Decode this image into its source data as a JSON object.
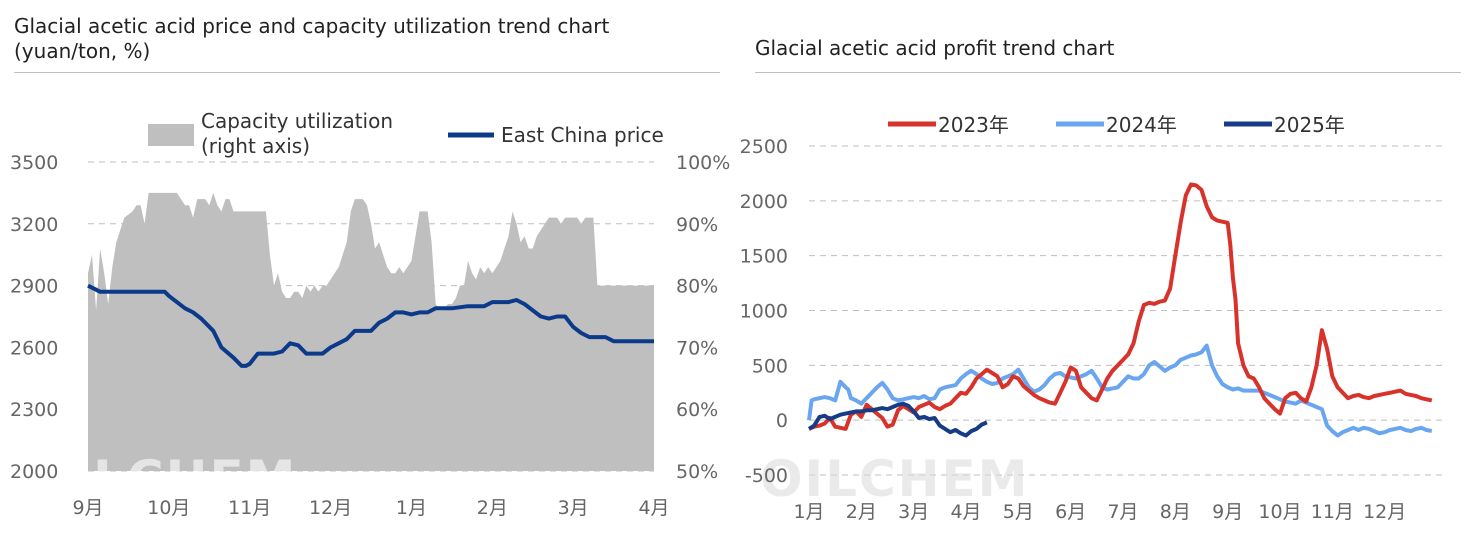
{
  "colors": {
    "capacity_fill": "#bfbfbf",
    "east_china": "#0c3a8a",
    "y2023": "#d7332b",
    "y2024": "#6aa6f0",
    "y2025": "#173c86",
    "grid": "#bfbfbf",
    "axis_text": "#666666"
  },
  "watermark": "OILCHEM",
  "chart_data": [
    {
      "type": "line",
      "title_line1": "Glacial acetic acid price and capacity utilization trend chart",
      "title_line2": "(yuan/ton, %)",
      "categories": [
        "9月",
        "10月",
        "11月",
        "12月",
        "1月",
        "2月",
        "3月",
        "4月"
      ],
      "ylim_left": [
        2000,
        3500
      ],
      "yticks_left": [
        "3500",
        "3200",
        "2900",
        "2600",
        "2300",
        "2000"
      ],
      "ylim_right": [
        50,
        100
      ],
      "yticks_right": [
        "100%",
        "90%",
        "80%",
        "70%",
        "60%",
        "50%"
      ],
      "legend": {
        "capacity": "Capacity utilization",
        "capacity_sub": "(right axis)",
        "price": "East China price"
      },
      "series": [
        {
          "name": "Capacity utilization",
          "kind": "area",
          "axis": "right",
          "x": [
            0,
            0.05,
            0.1,
            0.15,
            0.2,
            0.25,
            0.3,
            0.35,
            0.4,
            0.45,
            0.5,
            0.55,
            0.6,
            0.65,
            0.7,
            0.75,
            0.8,
            0.85,
            0.9,
            0.95,
            1.0,
            1.05,
            1.1,
            1.15,
            1.2,
            1.25,
            1.3,
            1.35,
            1.4,
            1.45,
            1.5,
            1.55,
            1.6,
            1.65,
            1.7,
            1.75,
            1.8,
            1.85,
            1.9,
            1.95,
            2.0,
            2.05,
            2.1,
            2.15,
            2.2,
            2.25,
            2.3,
            2.35,
            2.4,
            2.45,
            2.5,
            2.55,
            2.6,
            2.65,
            2.7,
            2.75,
            2.8,
            2.85,
            2.9,
            2.95,
            3.0,
            3.05,
            3.1,
            3.15,
            3.2,
            3.25,
            3.3,
            3.35,
            3.4,
            3.45,
            3.5,
            3.55,
            3.6,
            3.65,
            3.7,
            3.75,
            3.8,
            3.85,
            3.9,
            3.95,
            4.0,
            4.05,
            4.1,
            4.15,
            4.2,
            4.25,
            4.3,
            4.35,
            4.4,
            4.45,
            4.5,
            4.55,
            4.6,
            4.65,
            4.7,
            4.75,
            4.8,
            4.85,
            4.9,
            4.95,
            5.0,
            5.05,
            5.1,
            5.15,
            5.2,
            5.25,
            5.3,
            5.35,
            5.4,
            5.45,
            5.5,
            5.55,
            5.6,
            5.65,
            5.7,
            5.75,
            5.8,
            5.85,
            5.9,
            5.95,
            6.0,
            6.05,
            6.1,
            6.15,
            6.2,
            6.25,
            6.3,
            6.35,
            6.4,
            6.45,
            6.5,
            6.55,
            6.6,
            6.65,
            6.7,
            6.75,
            6.8,
            6.85,
            6.9,
            6.95,
            7.0
          ],
          "values": [
            82,
            85,
            76,
            86,
            82,
            77,
            83,
            87,
            89,
            91,
            91.5,
            92,
            93,
            93,
            90,
            95,
            95,
            95,
            95,
            95,
            95,
            95,
            95,
            94,
            93,
            93,
            91,
            94,
            94,
            94,
            93,
            95,
            93,
            92,
            94,
            94,
            92,
            92,
            92,
            92,
            92,
            92,
            92,
            92,
            92,
            85,
            80,
            82,
            79,
            78,
            78,
            79,
            79,
            78,
            80,
            79,
            80,
            79,
            80,
            80,
            81,
            82,
            83,
            85,
            87,
            92,
            94,
            94,
            94,
            93,
            90,
            86,
            87,
            85,
            83,
            82,
            82,
            83,
            82,
            83,
            84,
            88,
            92,
            92,
            92,
            87,
            77,
            76,
            76,
            77,
            77,
            78,
            80,
            80,
            84,
            82,
            81,
            83,
            82,
            83,
            82,
            83,
            84,
            86,
            88,
            92,
            90,
            87,
            88,
            86,
            86,
            88,
            89,
            90,
            91,
            91,
            91,
            90,
            91,
            91,
            91,
            91,
            90,
            91,
            91,
            91,
            80,
            80,
            80,
            80,
            80,
            80,
            80,
            80,
            80,
            80,
            80,
            80,
            80,
            80,
            80
          ]
        },
        {
          "name": "East China price",
          "kind": "line",
          "axis": "left",
          "x": [
            0,
            0.05,
            0.1,
            0.15,
            0.2,
            0.4,
            0.6,
            0.8,
            0.95,
            1.0,
            1.1,
            1.2,
            1.3,
            1.4,
            1.5,
            1.55,
            1.65,
            1.8,
            1.9,
            1.95,
            2.0,
            2.1,
            2.2,
            2.3,
            2.4,
            2.5,
            2.6,
            2.7,
            2.8,
            2.9,
            3.0,
            3.1,
            3.2,
            3.25,
            3.3,
            3.4,
            3.5,
            3.55,
            3.6,
            3.7,
            3.8,
            3.9,
            4.0,
            4.1,
            4.2,
            4.3,
            4.5,
            4.7,
            4.9,
            5.0,
            5.1,
            5.2,
            5.3,
            5.4,
            5.5,
            5.6,
            5.7,
            5.8,
            5.9,
            6.0,
            6.1,
            6.2,
            6.3,
            6.4,
            6.5,
            6.6,
            6.7,
            6.8,
            6.9,
            7.0
          ],
          "values": [
            2900,
            2890,
            2880,
            2870,
            2870,
            2870,
            2870,
            2870,
            2870,
            2850,
            2820,
            2790,
            2770,
            2740,
            2700,
            2680,
            2600,
            2550,
            2510,
            2510,
            2520,
            2570,
            2570,
            2570,
            2580,
            2620,
            2610,
            2570,
            2570,
            2570,
            2600,
            2620,
            2640,
            2660,
            2680,
            2680,
            2680,
            2700,
            2720,
            2740,
            2770,
            2770,
            2760,
            2770,
            2770,
            2790,
            2790,
            2800,
            2800,
            2820,
            2820,
            2820,
            2830,
            2810,
            2780,
            2750,
            2740,
            2750,
            2750,
            2700,
            2670,
            2650,
            2650,
            2650,
            2630,
            2630,
            2630,
            2630,
            2630,
            2630
          ]
        }
      ]
    },
    {
      "type": "line",
      "title": "Glacial acetic acid profit trend chart",
      "categories": [
        "1月",
        "2月",
        "3月",
        "4月",
        "5月",
        "6月",
        "7月",
        "8月",
        "9月",
        "10月",
        "11月",
        "12月"
      ],
      "ylim": [
        -500,
        2500
      ],
      "yticks": [
        "2500",
        "2000",
        "1500",
        "1000",
        "500",
        "0",
        "-500"
      ],
      "legend": [
        "2023年",
        "2024年",
        "2025年"
      ],
      "series": [
        {
          "name": "2023年",
          "x": [
            0,
            0.1,
            0.2,
            0.3,
            0.4,
            0.5,
            0.6,
            0.7,
            0.8,
            0.9,
            1.0,
            1.1,
            1.2,
            1.3,
            1.4,
            1.5,
            1.6,
            1.7,
            1.8,
            1.9,
            2.0,
            2.1,
            2.2,
            2.3,
            2.4,
            2.5,
            2.6,
            2.7,
            2.8,
            2.9,
            3.0,
            3.1,
            3.2,
            3.3,
            3.4,
            3.5,
            3.6,
            3.7,
            3.8,
            3.9,
            4.0,
            4.1,
            4.2,
            4.3,
            4.4,
            4.5,
            4.6,
            4.7,
            4.8,
            4.9,
            5.0,
            5.1,
            5.2,
            5.3,
            5.4,
            5.5,
            5.6,
            5.7,
            5.8,
            5.9,
            6.0,
            6.1,
            6.2,
            6.3,
            6.4,
            6.5,
            6.6,
            6.7,
            6.8,
            6.9,
            7.0,
            7.1,
            7.2,
            7.3,
            7.4,
            7.5,
            7.6,
            7.7,
            7.8,
            7.9,
            8.0,
            8.05,
            8.1,
            8.15,
            8.2,
            8.25,
            8.3,
            8.4,
            8.5,
            8.6,
            8.7,
            8.8,
            8.9,
            9.0,
            9.1,
            9.2,
            9.3,
            9.4,
            9.5,
            9.6,
            9.7,
            9.8,
            9.9,
            10.0,
            10.1,
            10.2,
            10.3,
            10.4,
            10.5,
            10.6,
            10.7,
            10.8,
            10.9,
            11.0,
            11.1,
            11.2,
            11.3,
            11.4,
            11.5,
            11.6,
            11.7,
            11.8,
            11.9
          ],
          "values": [
            -80,
            -60,
            -50,
            -30,
            20,
            -60,
            -70,
            -80,
            50,
            80,
            30,
            140,
            100,
            60,
            20,
            -60,
            -40,
            90,
            130,
            100,
            70,
            120,
            140,
            160,
            120,
            100,
            130,
            150,
            200,
            250,
            240,
            300,
            380,
            420,
            460,
            430,
            400,
            300,
            330,
            400,
            380,
            310,
            270,
            230,
            200,
            180,
            160,
            150,
            250,
            350,
            480,
            450,
            300,
            250,
            200,
            180,
            280,
            380,
            450,
            500,
            550,
            600,
            700,
            900,
            1050,
            1070,
            1060,
            1080,
            1090,
            1200,
            1500,
            1800,
            2050,
            2150,
            2140,
            2100,
            1950,
            1850,
            1820,
            1810,
            1800,
            1600,
            1300,
            1100,
            700,
            600,
            500,
            400,
            380,
            300,
            200,
            150,
            100,
            60,
            200,
            240,
            250,
            200,
            170,
            300,
            500,
            820,
            650,
            400,
            300,
            250,
            200,
            220,
            230,
            210,
            200,
            220,
            230,
            240,
            250,
            260,
            270,
            240,
            230,
            220,
            200,
            190,
            180
          ]
        },
        {
          "name": "2024年",
          "x": [
            0,
            0.05,
            0.1,
            0.2,
            0.3,
            0.4,
            0.5,
            0.6,
            0.7,
            0.75,
            0.8,
            0.9,
            1.0,
            1.1,
            1.2,
            1.3,
            1.4,
            1.5,
            1.6,
            1.7,
            1.8,
            1.9,
            2.0,
            2.1,
            2.2,
            2.3,
            2.4,
            2.5,
            2.6,
            2.7,
            2.8,
            2.9,
            3.0,
            3.1,
            3.2,
            3.3,
            3.4,
            3.5,
            3.6,
            3.7,
            3.8,
            3.9,
            4.0,
            4.1,
            4.2,
            4.3,
            4.4,
            4.5,
            4.6,
            4.7,
            4.8,
            4.9,
            5.0,
            5.1,
            5.2,
            5.3,
            5.4,
            5.5,
            5.6,
            5.7,
            5.8,
            5.9,
            6.0,
            6.1,
            6.2,
            6.3,
            6.4,
            6.5,
            6.6,
            6.7,
            6.8,
            6.9,
            7.0,
            7.1,
            7.2,
            7.3,
            7.4,
            7.5,
            7.6,
            7.7,
            7.8,
            7.9,
            8.0,
            8.1,
            8.2,
            8.3,
            8.4,
            8.5,
            8.6,
            8.7,
            8.8,
            8.9,
            9.0,
            9.1,
            9.2,
            9.3,
            9.4,
            9.5,
            9.6,
            9.7,
            9.8,
            9.9,
            10.0,
            10.1,
            10.2,
            10.3,
            10.4,
            10.5,
            10.6,
            10.7,
            10.8,
            10.9,
            11.0,
            11.1,
            11.2,
            11.3,
            11.4,
            11.5,
            11.6,
            11.7,
            11.8,
            11.9
          ],
          "values": [
            0,
            180,
            190,
            200,
            210,
            200,
            180,
            350,
            300,
            280,
            200,
            180,
            150,
            200,
            250,
            300,
            340,
            280,
            200,
            180,
            190,
            200,
            210,
            200,
            220,
            190,
            200,
            280,
            300,
            310,
            320,
            380,
            420,
            450,
            420,
            380,
            350,
            330,
            340,
            380,
            400,
            420,
            460,
            380,
            300,
            260,
            280,
            320,
            380,
            420,
            430,
            400,
            390,
            380,
            400,
            420,
            450,
            380,
            300,
            280,
            290,
            300,
            350,
            400,
            380,
            380,
            420,
            500,
            530,
            490,
            450,
            480,
            500,
            550,
            570,
            590,
            600,
            620,
            680,
            500,
            400,
            330,
            300,
            280,
            290,
            270,
            270,
            270,
            270,
            250,
            230,
            210,
            190,
            170,
            160,
            150,
            180,
            160,
            140,
            120,
            100,
            -50,
            -100,
            -140,
            -110,
            -90,
            -70,
            -90,
            -70,
            -80,
            -100,
            -120,
            -110,
            -90,
            -80,
            -70,
            -90,
            -100,
            -80,
            -70,
            -90,
            -100
          ]
        },
        {
          "name": "2025年",
          "x": [
            0,
            0.1,
            0.2,
            0.3,
            0.4,
            0.5,
            0.6,
            0.7,
            0.8,
            0.9,
            1.0,
            1.1,
            1.2,
            1.3,
            1.4,
            1.5,
            1.6,
            1.7,
            1.8,
            1.9,
            2.0,
            2.1,
            2.2,
            2.3,
            2.4,
            2.5,
            2.6,
            2.7,
            2.8,
            2.9,
            3.0,
            3.1,
            3.2,
            3.3,
            3.4
          ],
          "values": [
            -80,
            -50,
            30,
            40,
            10,
            30,
            50,
            60,
            70,
            80,
            80,
            90,
            90,
            100,
            110,
            100,
            120,
            140,
            150,
            130,
            80,
            20,
            30,
            10,
            20,
            -50,
            -80,
            -110,
            -90,
            -120,
            -140,
            -100,
            -80,
            -40,
            -20
          ]
        }
      ]
    }
  ]
}
